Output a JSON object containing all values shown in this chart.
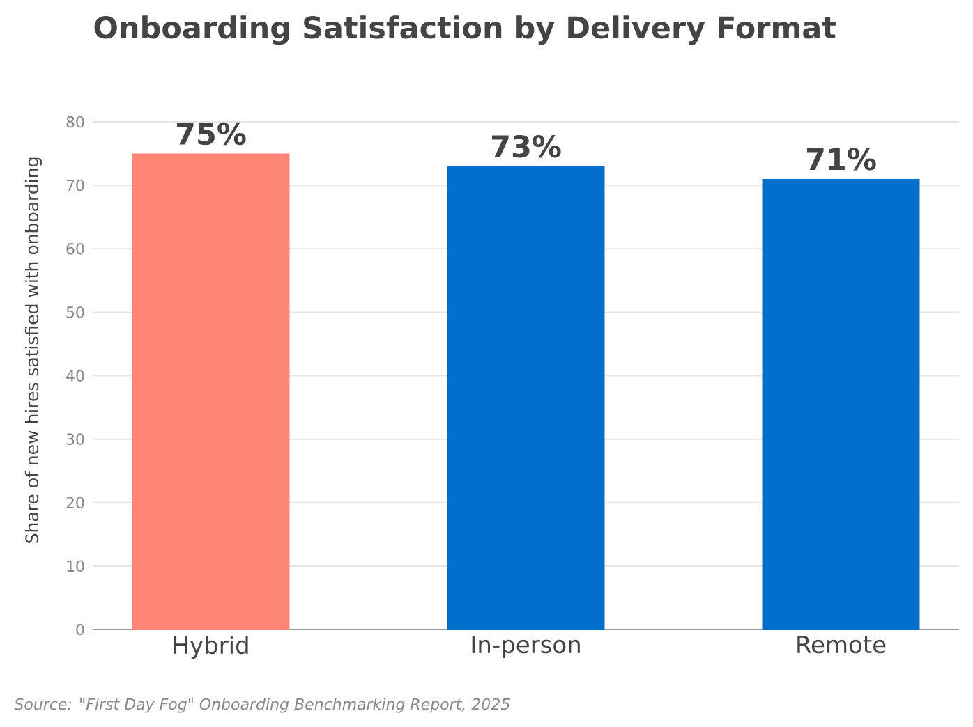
{
  "chart_data": {
    "type": "bar",
    "title": "Onboarding Satisfaction by Delivery Format",
    "ylabel": "Share of new hires satisfied with onboarding",
    "categories": [
      "Hybrid",
      "In-person",
      "Remote"
    ],
    "values": [
      75,
      73,
      71
    ],
    "colors": [
      "#ff8575",
      "#0070cc",
      "#0070cc"
    ],
    "value_labels": [
      "75%",
      "73%",
      "71%"
    ],
    "ylim": [
      0,
      80
    ],
    "yticks": [
      0,
      10,
      20,
      30,
      40,
      50,
      60,
      70,
      80
    ],
    "grid": "y",
    "annotations": [
      "Source: \"First Day Fog\" Onboarding Benchmarking Report, 2025"
    ]
  }
}
